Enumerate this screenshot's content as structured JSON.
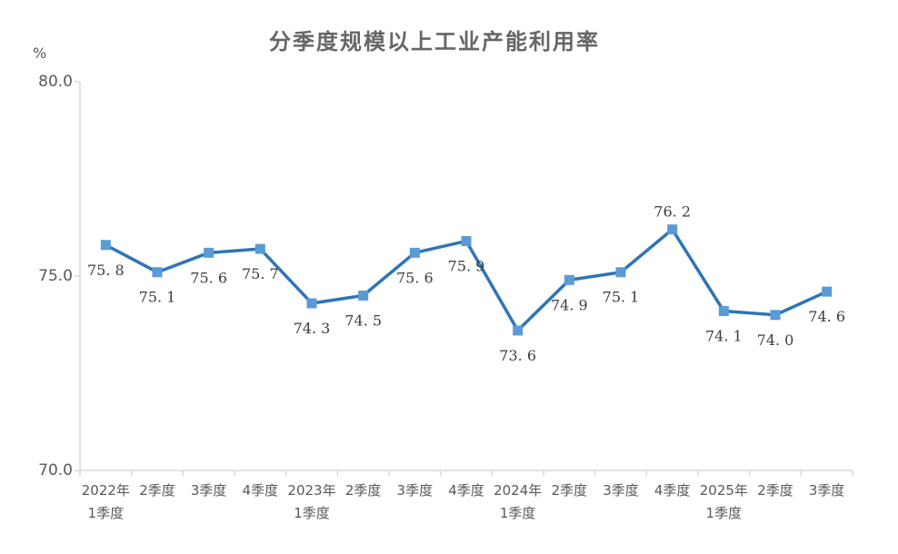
{
  "chart_data": {
    "type": "line",
    "title": "分季度规模以上工业产能利用率",
    "ylabel": "%",
    "xlabel": "",
    "categories": [
      [
        "2022年",
        "1季度"
      ],
      [
        "2季度"
      ],
      [
        "3季度"
      ],
      [
        "4季度"
      ],
      [
        "2023年",
        "1季度"
      ],
      [
        "2季度"
      ],
      [
        "3季度"
      ],
      [
        "4季度"
      ],
      [
        "2024年",
        "1季度"
      ],
      [
        "2季度"
      ],
      [
        "3季度"
      ],
      [
        "4季度"
      ],
      [
        "2025年",
        "1季度"
      ],
      [
        "2季度"
      ],
      [
        "3季度"
      ]
    ],
    "values": [
      75.8,
      75.1,
      75.6,
      75.7,
      74.3,
      74.5,
      75.6,
      75.9,
      73.6,
      74.9,
      75.1,
      76.2,
      74.1,
      74.0,
      74.6
    ],
    "point_labels": [
      "75. 8",
      "75. 1",
      "75. 6",
      "75. 7",
      "74. 3",
      "74. 5",
      "75. 6",
      "75. 9",
      "73. 6",
      "74. 9",
      "75. 1",
      "76. 2",
      "74. 1",
      "74. 0",
      "74. 6"
    ],
    "y_axis": {
      "min": 70.0,
      "max": 80.0,
      "tick_values": [
        80,
        75,
        70
      ],
      "tick_labels": [
        "80.0",
        "75.0",
        "70.0"
      ]
    },
    "layout": {
      "grid": false,
      "legend": false,
      "marker_shape": "square",
      "label_above_index": 11
    },
    "colors": {
      "line": "#2e75b6",
      "marker_fill": "#5b9bd5",
      "axis": "#d9d9d9",
      "tick_text": "#595959",
      "title_text": "#666666",
      "data_label_text": "#3d3d3d",
      "background": "#ffffff"
    }
  }
}
